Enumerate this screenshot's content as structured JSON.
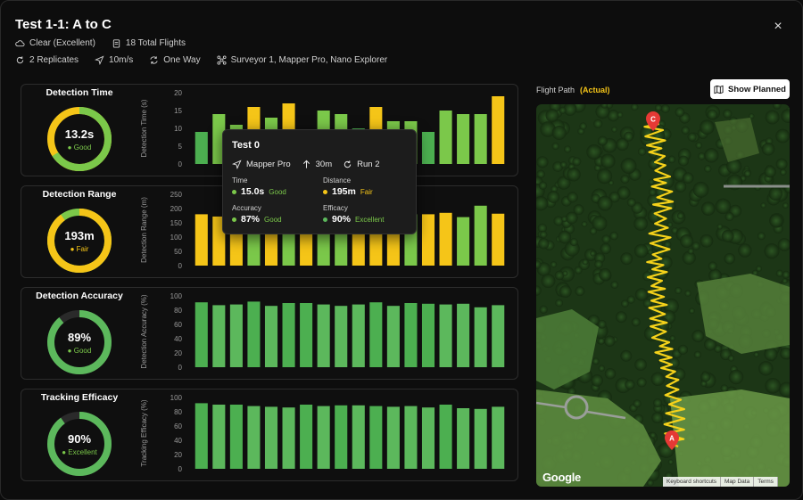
{
  "header": {
    "title": "Test 1-1: A to C",
    "close_label": "×"
  },
  "meta": {
    "row1": [
      {
        "icon": "cloud-icon",
        "text": "Clear (Excellent)"
      },
      {
        "icon": "clipboard-icon",
        "text": "18 Total Flights"
      }
    ],
    "row2": [
      {
        "icon": "repeat-icon",
        "text": "2 Replicates"
      },
      {
        "icon": "send-icon",
        "text": "10m/s"
      },
      {
        "icon": "refresh-icon",
        "text": "One Way"
      },
      {
        "icon": "drone-icon",
        "text": "Surveyor 1, Mapper Pro, Nano Explorer"
      }
    ]
  },
  "colors": {
    "good": "#5cb85c",
    "fair": "#f5c518",
    "excellent": "#5cb85c",
    "bg": "#0d0d0d"
  },
  "panels": [
    {
      "title": "Detection Time",
      "value": "13.2s",
      "rating": "Good",
      "rating_color": "#7bc84a",
      "donut": {
        "fraction": 0.66,
        "primary": "#7bc84a",
        "secondary": "#f5c518"
      }
    },
    {
      "title": "Detection Range",
      "value": "193m",
      "rating": "Fair",
      "rating_color": "#f5c518",
      "donut": {
        "fraction": 0.9,
        "primary": "#f5c518",
        "secondary": "#7bc84a"
      }
    },
    {
      "title": "Detection Accuracy",
      "value": "89%",
      "rating": "Good",
      "rating_color": "#7bc84a",
      "donut": {
        "fraction": 0.89,
        "primary": "#5cb85c",
        "secondary": "#2a2a2a"
      }
    },
    {
      "title": "Tracking Efficacy",
      "value": "90%",
      "rating": "Excellent",
      "rating_color": "#7bc84a",
      "donut": {
        "fraction": 0.9,
        "primary": "#5cb85c",
        "secondary": "#2a2a2a"
      }
    }
  ],
  "chart_data": [
    {
      "type": "bar",
      "ylabel": "Detection Time (s)",
      "ylim": [
        0,
        20
      ],
      "yticks": [
        0,
        5,
        10,
        15,
        20
      ],
      "values": [
        9,
        14,
        11,
        16,
        13,
        17,
        8,
        15,
        14,
        10,
        16,
        12,
        12,
        9,
        15,
        14,
        14,
        19
      ],
      "colors": [
        "#4caf50",
        "#7bc84a",
        "#7bc84a",
        "#f5c518",
        "#7bc84a",
        "#f5c518",
        "#4caf50",
        "#7bc84a",
        "#7bc84a",
        "#4caf50",
        "#f5c518",
        "#7bc84a",
        "#7bc84a",
        "#4caf50",
        "#7bc84a",
        "#7bc84a",
        "#7bc84a",
        "#f5c518"
      ]
    },
    {
      "type": "bar",
      "ylabel": "Detection Range (m)",
      "ylim": [
        0,
        250
      ],
      "yticks": [
        0,
        50,
        100,
        150,
        200,
        250
      ],
      "values": [
        180,
        172,
        160,
        205,
        170,
        178,
        170,
        180,
        185,
        172,
        180,
        175,
        180,
        180,
        185,
        170,
        210,
        182
      ],
      "colors": [
        "#f5c518",
        "#f5c518",
        "#f5c518",
        "#7bc84a",
        "#f5c518",
        "#7bc84a",
        "#f5c518",
        "#7bc84a",
        "#7bc84a",
        "#f5c518",
        "#f5c518",
        "#f5c518",
        "#7bc84a",
        "#f5c518",
        "#f5c518",
        "#7bc84a",
        "#7bc84a",
        "#f5c518"
      ]
    },
    {
      "type": "bar",
      "ylabel": "Detection Accuracy (%)",
      "ylim": [
        0,
        100
      ],
      "yticks": [
        0,
        20,
        40,
        60,
        80,
        100
      ],
      "values": [
        91,
        87,
        88,
        92,
        86,
        90,
        90,
        88,
        86,
        88,
        91,
        86,
        90,
        89,
        88,
        89,
        84,
        87
      ],
      "colors": [
        "#4caf50",
        "#5cb85c",
        "#5cb85c",
        "#4caf50",
        "#5cb85c",
        "#4caf50",
        "#4caf50",
        "#5cb85c",
        "#5cb85c",
        "#5cb85c",
        "#4caf50",
        "#5cb85c",
        "#4caf50",
        "#4caf50",
        "#5cb85c",
        "#5cb85c",
        "#5cb85c",
        "#5cb85c"
      ]
    },
    {
      "type": "bar",
      "ylabel": "Tracking Efficacy (%)",
      "ylim": [
        0,
        100
      ],
      "yticks": [
        0,
        20,
        40,
        60,
        80,
        100
      ],
      "values": [
        92,
        90,
        90,
        88,
        87,
        86,
        90,
        88,
        89,
        89,
        88,
        87,
        88,
        86,
        90,
        85,
        84,
        87
      ],
      "colors": [
        "#4caf50",
        "#5cb85c",
        "#4caf50",
        "#5cb85c",
        "#5cb85c",
        "#5cb85c",
        "#4caf50",
        "#5cb85c",
        "#4caf50",
        "#5cb85c",
        "#4caf50",
        "#5cb85c",
        "#5cb85c",
        "#5cb85c",
        "#4caf50",
        "#5cb85c",
        "#5cb85c",
        "#5cb85c"
      ]
    }
  ],
  "tooltip": {
    "title": "Test 0",
    "drone": "Mapper Pro",
    "altitude": "30m",
    "run": "Run 2",
    "time_label": "Time",
    "time_value": "15.0s",
    "time_rating": "Good",
    "distance_label": "Distance",
    "distance_value": "195m",
    "distance_rating": "Fair",
    "accuracy_label": "Accuracy",
    "accuracy_value": "87%",
    "accuracy_rating": "Good",
    "efficacy_label": "Efficacy",
    "efficacy_value": "90%",
    "efficacy_rating": "Excellent"
  },
  "flight_path": {
    "label": "Flight Path",
    "mode": "(Actual)",
    "show_planned_label": "Show Planned",
    "marker_start": "A",
    "marker_end": "C",
    "google_logo": "Google",
    "footer": [
      "Keyboard shortcuts",
      "Map Data",
      "Terms"
    ]
  }
}
